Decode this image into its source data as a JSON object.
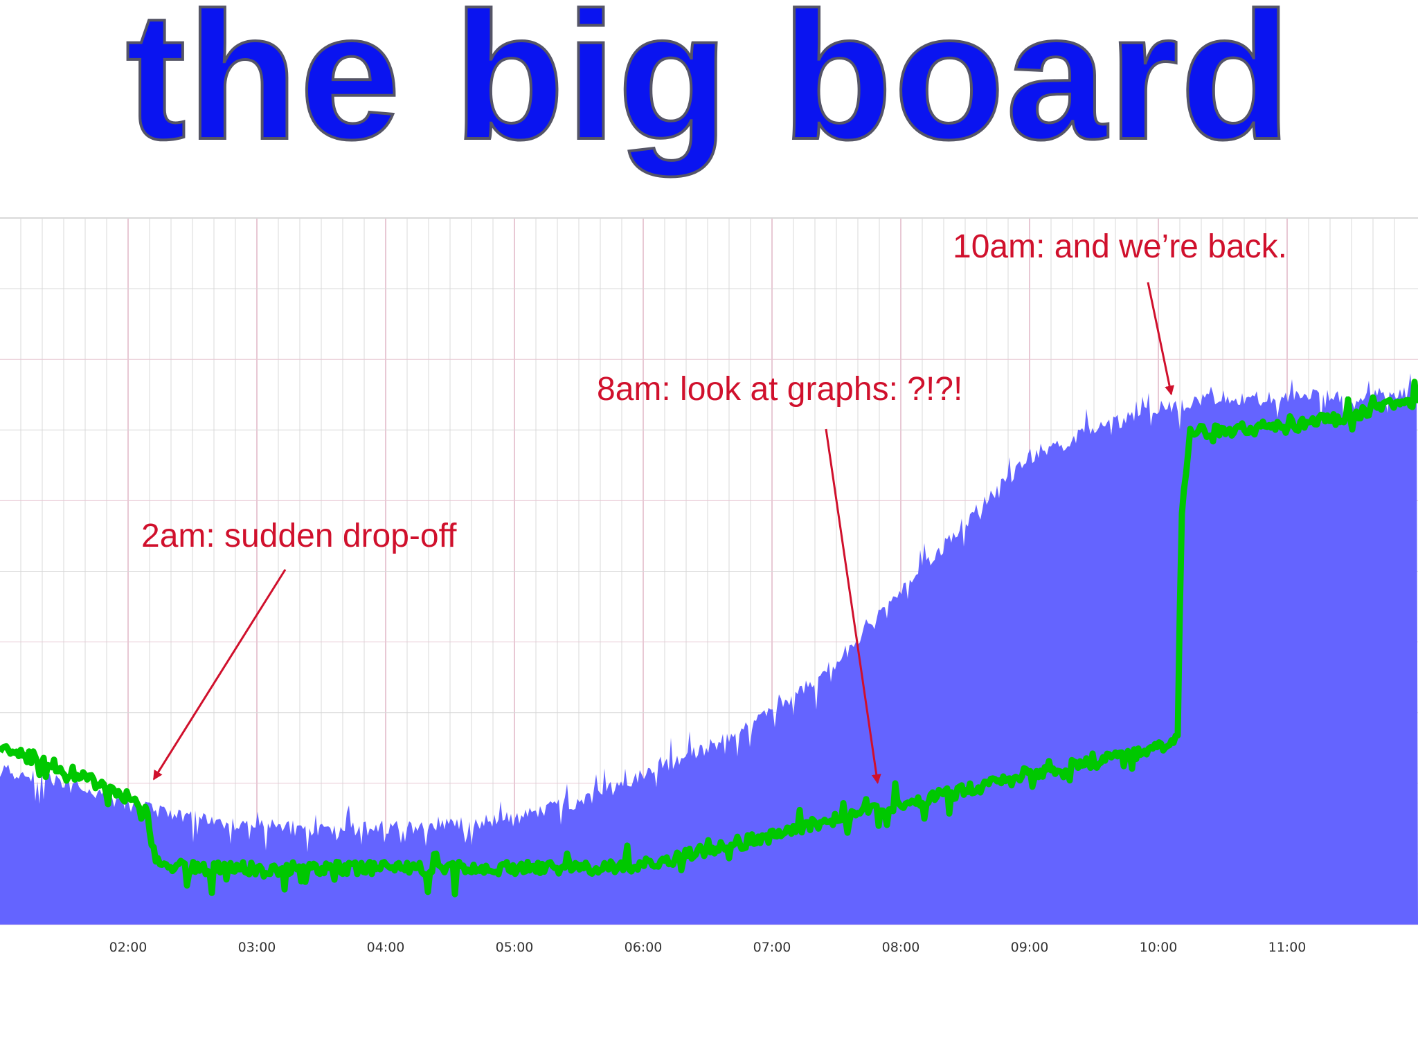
{
  "title": "the big board",
  "colors": {
    "title": "#0a14f0",
    "area": "#6464ff",
    "line": "#00c800",
    "annotation": "#d0102c",
    "grid": "#d8d8d8",
    "grid_major": "#e8c8d4"
  },
  "chart_data": {
    "type": "area",
    "xlabel": "",
    "ylabel": "",
    "grid": true,
    "x_ticks": [
      "02:00",
      "03:00",
      "04:00",
      "05:00",
      "06:00",
      "07:00",
      "08:00",
      "09:00",
      "10:00",
      "11:00"
    ],
    "xlim_hours": [
      1.0,
      11.9
    ],
    "ylim": [
      0,
      100
    ],
    "series": [
      {
        "kind": "area",
        "x": [
          1.0,
          1.5,
          2.0,
          2.3,
          2.7,
          3.0,
          3.5,
          4.0,
          4.5,
          5.0,
          5.5,
          6.0,
          6.5,
          7.0,
          7.5,
          8.0,
          8.5,
          9.0,
          9.5,
          10.0,
          10.3,
          10.6,
          11.0,
          11.5,
          11.9
        ],
        "values": [
          22,
          20,
          17,
          16,
          14.5,
          14,
          13.5,
          13.5,
          14,
          15,
          17.5,
          21,
          25,
          30,
          37,
          47,
          57,
          66,
          70,
          73,
          74,
          74.5,
          74.5,
          75,
          75
        ]
      },
      {
        "kind": "line",
        "x": [
          1.0,
          1.5,
          2.0,
          2.15,
          2.18,
          2.25,
          2.5,
          3.0,
          3.5,
          4.0,
          4.5,
          5.0,
          5.5,
          6.0,
          6.5,
          7.0,
          7.5,
          8.0,
          8.5,
          9.0,
          9.5,
          10.0,
          10.15,
          10.18,
          10.25,
          10.5,
          11.0,
          11.5,
          11.9
        ],
        "values": [
          25,
          22,
          18,
          16,
          11,
          8.5,
          8,
          8,
          8,
          8,
          8,
          8,
          8,
          8.5,
          10.5,
          12.5,
          15,
          17,
          19,
          21.5,
          23,
          25,
          27,
          58,
          70,
          70,
          70.5,
          72,
          74
        ]
      }
    ]
  },
  "annotations": [
    {
      "text": "2am: sudden drop-off",
      "time": 2.2,
      "value": 20
    },
    {
      "text": "8am: look at graphs: ?!?!",
      "time": 7.82,
      "value": 19.5
    },
    {
      "text": "10am: and we’re back.",
      "time": 10.1,
      "value": 74.5
    }
  ]
}
